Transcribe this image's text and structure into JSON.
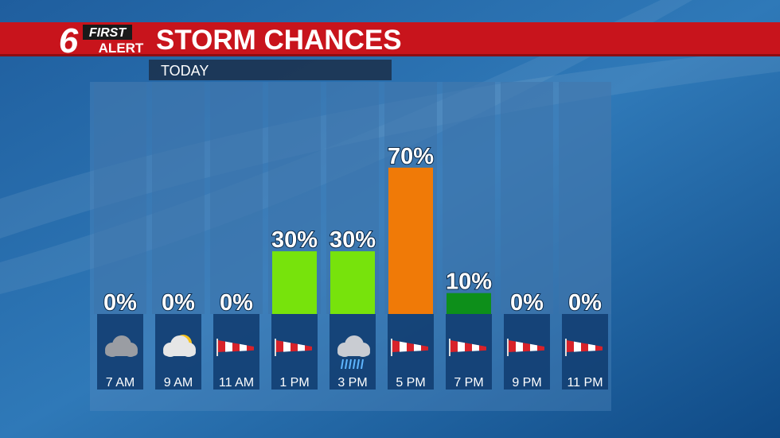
{
  "branding": {
    "number": "6",
    "line1": "FIRST",
    "line2": "ALERT"
  },
  "chart_data": {
    "type": "bar",
    "title": "STORM CHANCES",
    "subtitle": "TODAY",
    "categories": [
      "7 AM",
      "9 AM",
      "11 AM",
      "1 PM",
      "3 PM",
      "5 PM",
      "7 PM",
      "9 PM",
      "11 PM"
    ],
    "values": [
      0,
      0,
      0,
      30,
      30,
      70,
      10,
      0,
      0
    ],
    "value_labels": [
      "0%",
      "0%",
      "0%",
      "30%",
      "30%",
      "70%",
      "10%",
      "0%",
      "0%"
    ],
    "colors": [
      "#77e30c",
      "#77e30c",
      "#77e30c",
      "#77e30c",
      "#77e30c",
      "#f07a07",
      "#0d8f1a",
      "#77e30c",
      "#77e30c"
    ],
    "ylim": [
      0,
      100
    ]
  }
}
